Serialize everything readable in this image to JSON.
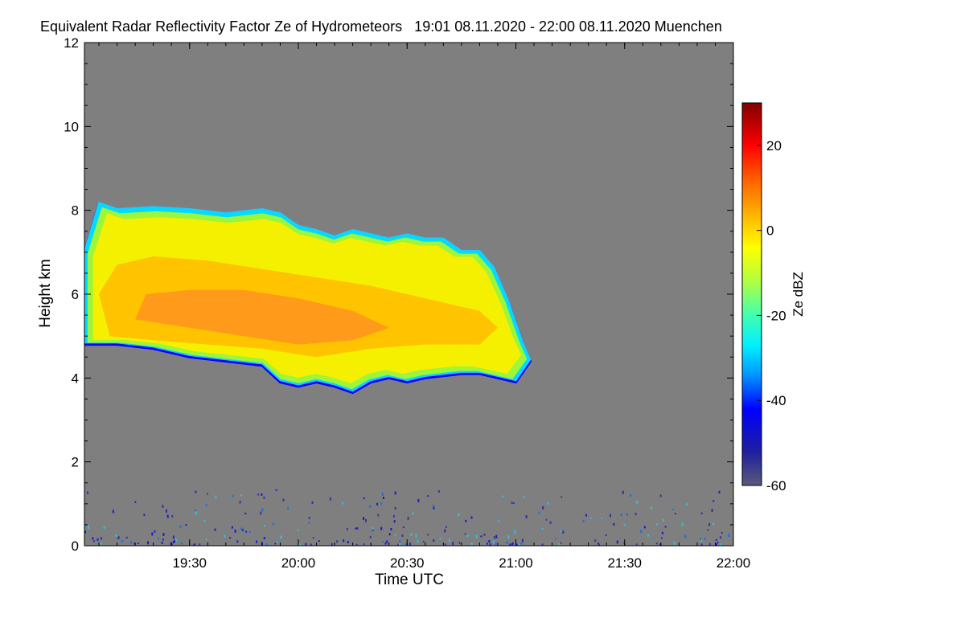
{
  "chart_data": {
    "type": "heatmap",
    "title": "Equivalent Radar Reflectivity Factor Ze of Hydrometeors   19:01 08.11.2020 - 22:00 08.11.2020 Muenchen",
    "xlabel": "Time UTC",
    "ylabel": "Height km",
    "xlim_minutes": [
      1141,
      1320
    ],
    "ylim_km": [
      0,
      12
    ],
    "x_ticks": [
      {
        "label": "19:30",
        "minutes": 1170
      },
      {
        "label": "20:00",
        "minutes": 1200
      },
      {
        "label": "20:30",
        "minutes": 1230
      },
      {
        "label": "21:00",
        "minutes": 1260
      },
      {
        "label": "21:30",
        "minutes": 1290
      },
      {
        "label": "22:00",
        "minutes": 1320
      }
    ],
    "y_ticks": [
      {
        "label": "0",
        "km": 0
      },
      {
        "label": "2",
        "km": 2
      },
      {
        "label": "4",
        "km": 4
      },
      {
        "label": "6",
        "km": 6
      },
      {
        "label": "8",
        "km": 8
      },
      {
        "label": "10",
        "km": 10
      },
      {
        "label": "12",
        "km": 12
      }
    ],
    "background_color": "#7f7f7f",
    "cloud_base_km": [
      [
        1141,
        4.8
      ],
      [
        1150,
        4.8
      ],
      [
        1160,
        4.7
      ],
      [
        1170,
        4.5
      ],
      [
        1180,
        4.4
      ],
      [
        1190,
        4.3
      ],
      [
        1195,
        3.9
      ],
      [
        1200,
        3.8
      ],
      [
        1205,
        3.9
      ],
      [
        1210,
        3.8
      ],
      [
        1215,
        3.65
      ],
      [
        1220,
        3.9
      ],
      [
        1225,
        4.0
      ],
      [
        1230,
        3.9
      ],
      [
        1235,
        4.0
      ],
      [
        1240,
        4.05
      ],
      [
        1245,
        4.1
      ],
      [
        1250,
        4.1
      ],
      [
        1255,
        4.0
      ],
      [
        1260,
        3.9
      ],
      [
        1264,
        4.4
      ]
    ],
    "cloud_top_km": [
      [
        1264,
        4.4
      ],
      [
        1262,
        4.8
      ],
      [
        1260,
        5.3
      ],
      [
        1258,
        5.8
      ],
      [
        1254,
        6.6
      ],
      [
        1250,
        7.0
      ],
      [
        1245,
        7.0
      ],
      [
        1240,
        7.3
      ],
      [
        1235,
        7.3
      ],
      [
        1230,
        7.4
      ],
      [
        1225,
        7.3
      ],
      [
        1220,
        7.4
      ],
      [
        1215,
        7.5
      ],
      [
        1210,
        7.35
      ],
      [
        1205,
        7.5
      ],
      [
        1200,
        7.6
      ],
      [
        1195,
        7.9
      ],
      [
        1190,
        8.0
      ],
      [
        1185,
        7.95
      ],
      [
        1180,
        7.9
      ],
      [
        1170,
        8.0
      ],
      [
        1160,
        8.05
      ],
      [
        1150,
        8.0
      ],
      [
        1145,
        8.15
      ],
      [
        1141,
        7.0
      ]
    ],
    "core_region_km": [
      [
        1148,
        5.0
      ],
      [
        1160,
        4.9
      ],
      [
        1175,
        4.8
      ],
      [
        1190,
        4.7
      ],
      [
        1205,
        4.5
      ],
      [
        1220,
        4.7
      ],
      [
        1235,
        4.8
      ],
      [
        1250,
        4.8
      ],
      [
        1255,
        5.2
      ],
      [
        1250,
        5.6
      ],
      [
        1235,
        5.9
      ],
      [
        1220,
        6.2
      ],
      [
        1205,
        6.4
      ],
      [
        1190,
        6.6
      ],
      [
        1175,
        6.8
      ],
      [
        1160,
        6.9
      ],
      [
        1150,
        6.7
      ],
      [
        1145,
        6.0
      ]
    ],
    "hot_region_km": [
      [
        1155,
        5.4
      ],
      [
        1170,
        5.2
      ],
      [
        1185,
        5.0
      ],
      [
        1200,
        4.8
      ],
      [
        1215,
        4.9
      ],
      [
        1225,
        5.2
      ],
      [
        1215,
        5.6
      ],
      [
        1200,
        5.9
      ],
      [
        1185,
        6.1
      ],
      [
        1170,
        6.1
      ],
      [
        1158,
        6.0
      ]
    ],
    "colorbar": {
      "label": "Ze dBZ",
      "range": [
        -60,
        30
      ],
      "ticks": [
        {
          "label": "20",
          "value": 20
        },
        {
          "label": "0",
          "value": 0
        },
        {
          "label": "-20",
          "value": -20
        },
        {
          "label": "-40",
          "value": -40
        },
        {
          "label": "-60",
          "value": -60
        }
      ],
      "color_stops": [
        {
          "value": -60,
          "color": "#5a5a7a"
        },
        {
          "value": -52,
          "color": "#1e1ea0"
        },
        {
          "value": -42,
          "color": "#0000ff"
        },
        {
          "value": -34,
          "color": "#0096ff"
        },
        {
          "value": -27,
          "color": "#00f0ff"
        },
        {
          "value": -20,
          "color": "#40ffb0"
        },
        {
          "value": -12,
          "color": "#b0ff40"
        },
        {
          "value": -4,
          "color": "#ffff00"
        },
        {
          "value": 4,
          "color": "#ffb000"
        },
        {
          "value": 12,
          "color": "#ff6000"
        },
        {
          "value": 20,
          "color": "#ff0000"
        },
        {
          "value": 30,
          "color": "#800000"
        }
      ]
    }
  }
}
